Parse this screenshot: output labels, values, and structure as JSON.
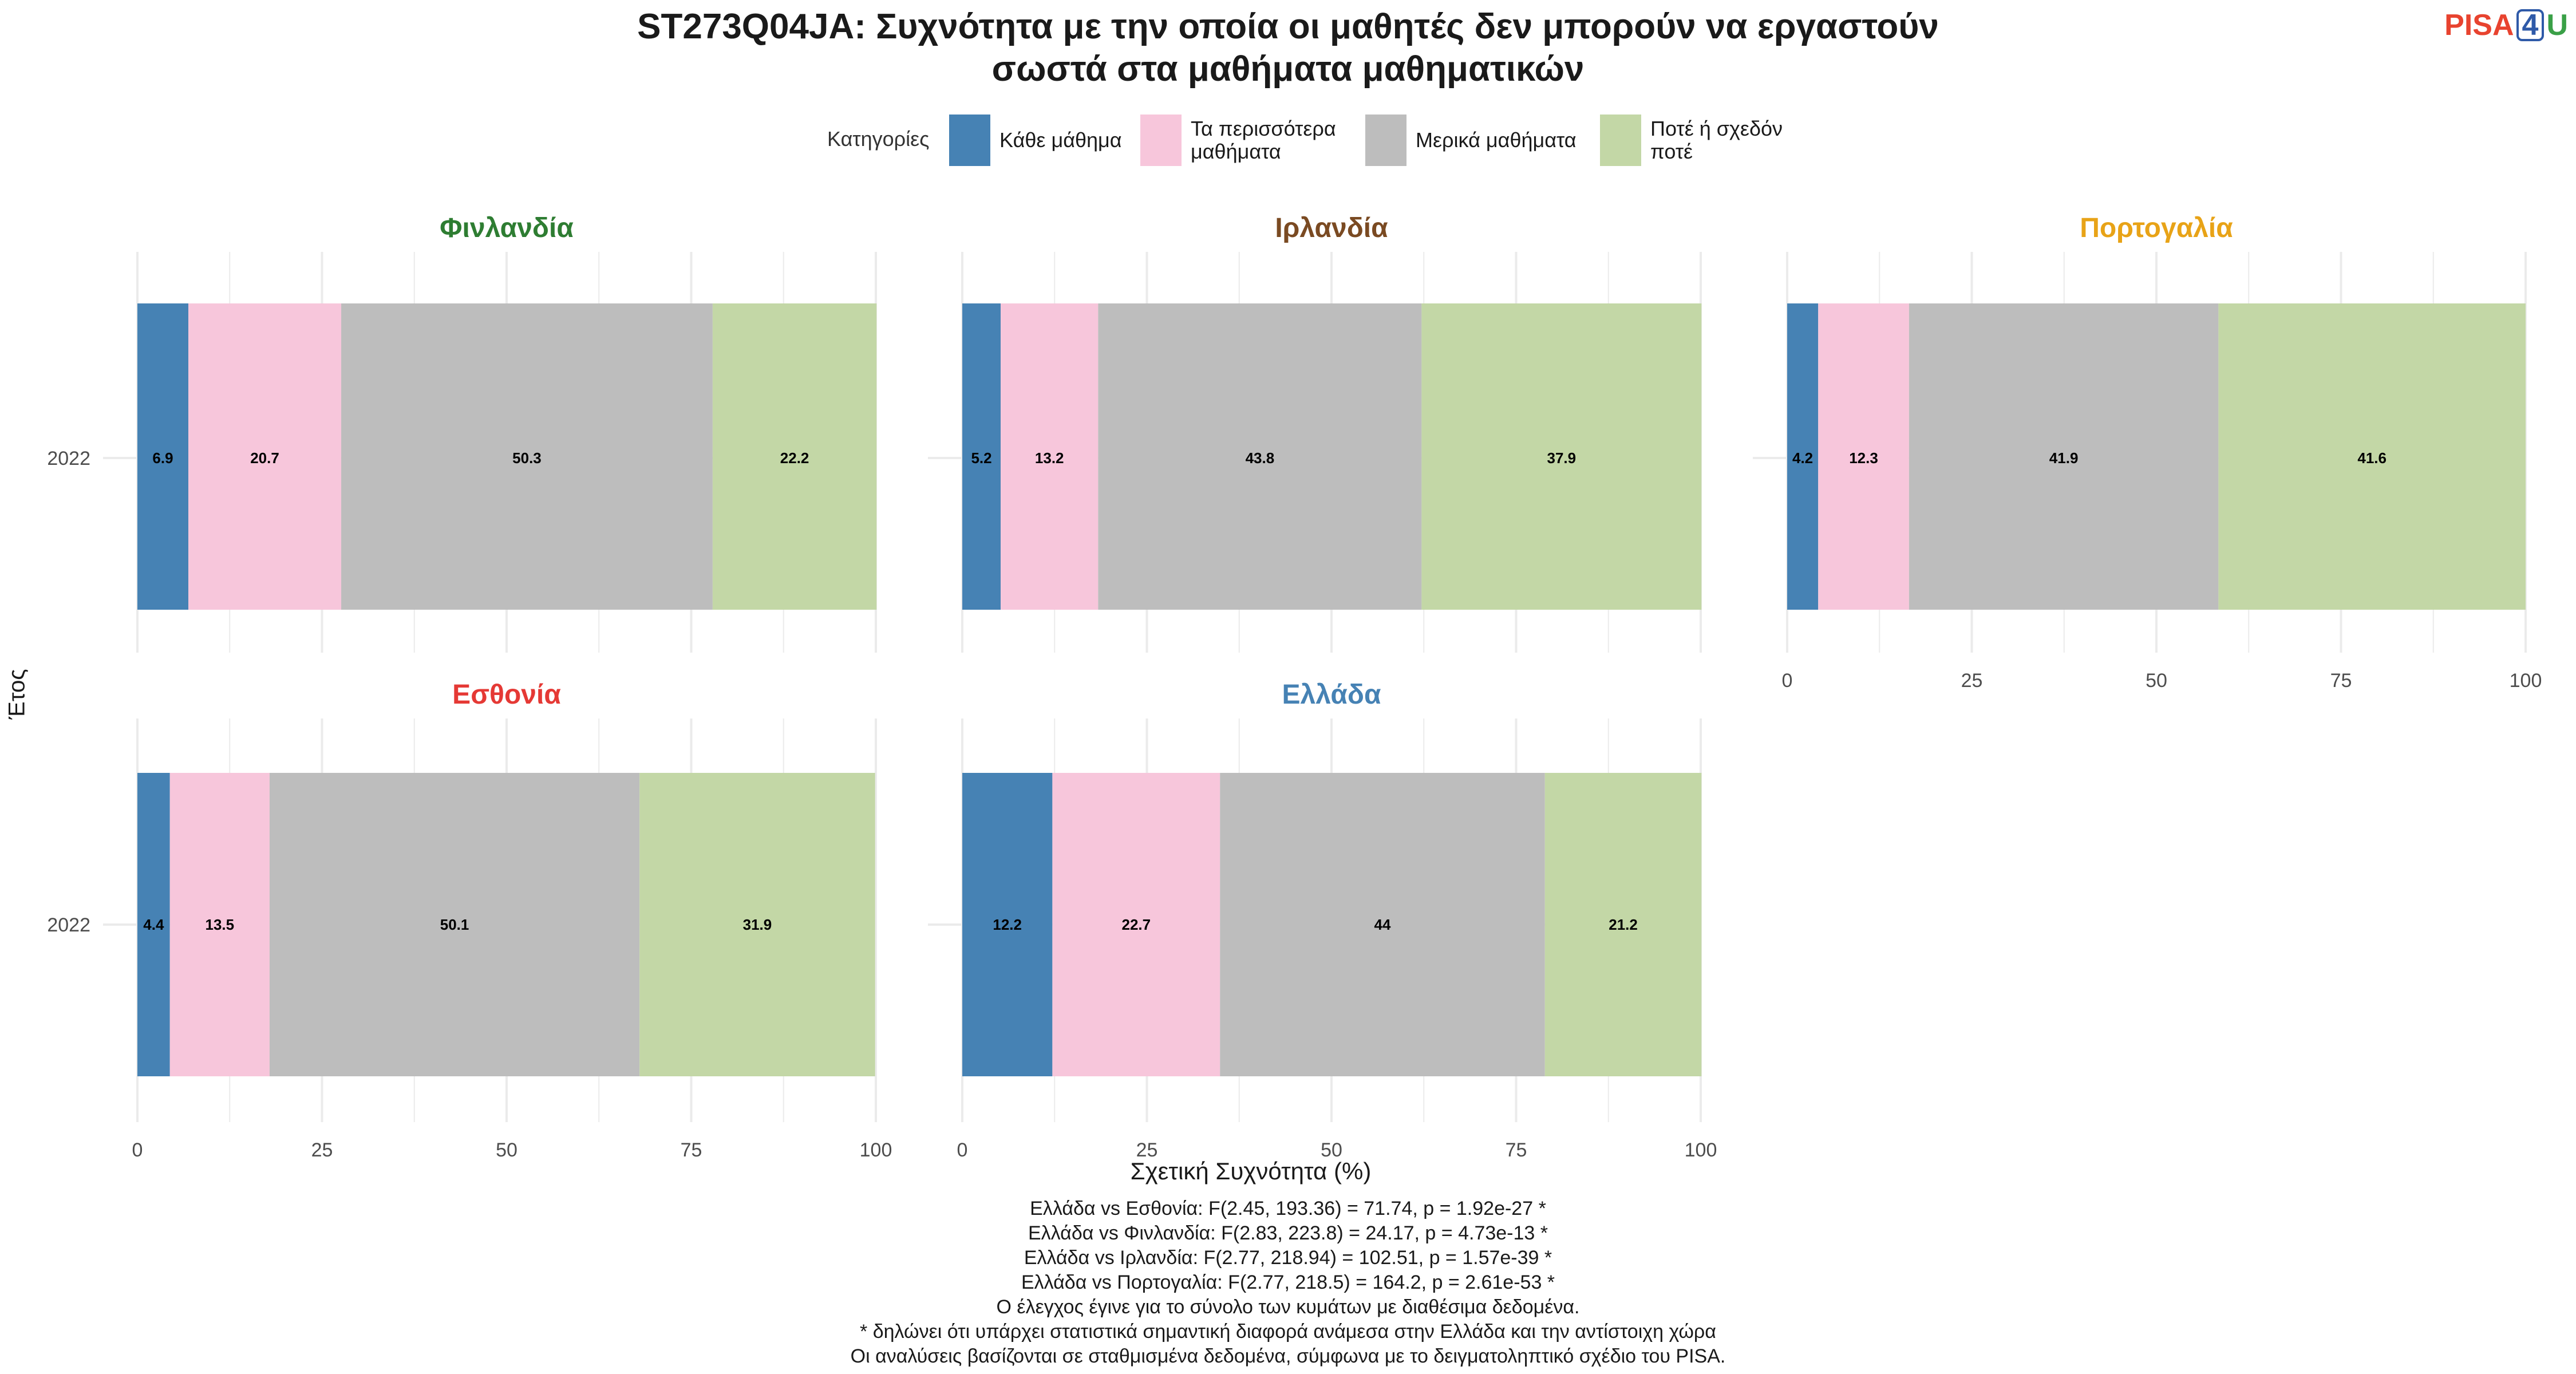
{
  "title_line1": "ST273Q04JA: Συχνότητα με την οποία οι μαθητές δεν μπορούν να εργαστούν",
  "title_line2": "σωστά στα μαθήματα μαθηματικών",
  "logo": {
    "pisa": "PISA",
    "num": "4",
    "u": "U"
  },
  "legend": {
    "title": "Κατηγορίες",
    "items": [
      {
        "label": "Κάθε μάθημα",
        "color": "#4682b4"
      },
      {
        "label": "Τα περισσότερα μαθήματα",
        "color": "#f7c6db"
      },
      {
        "label": "Μερικά μαθήματα",
        "color": "#bdbdbd"
      },
      {
        "label": "Ποτέ ή σχεδόν ποτέ",
        "color": "#c3d7a6"
      }
    ]
  },
  "chart_data": {
    "type": "bar",
    "orientation": "horizontal-stacked",
    "xlabel": "Σχετική Συχνότητα (%)",
    "ylabel": "Έτος",
    "xlim": [
      0,
      100
    ],
    "x_ticks": [
      0,
      25,
      50,
      75,
      100
    ],
    "categories": [
      "Κάθε μάθημα",
      "Τα περισσότερα μαθήματα",
      "Μερικά μαθήματα",
      "Ποτέ ή σχεδόν ποτέ"
    ],
    "panels": [
      {
        "country": "Φινλανδία",
        "color": "#2e7d32",
        "year": "2022",
        "values": [
          6.9,
          20.7,
          50.3,
          22.2
        ]
      },
      {
        "country": "Ιρλανδία",
        "color": "#7a4a22",
        "year": "2022",
        "values": [
          5.2,
          13.2,
          43.8,
          37.9
        ]
      },
      {
        "country": "Πορτογαλία",
        "color": "#e8a317",
        "year": "2022",
        "values": [
          4.2,
          12.3,
          41.9,
          41.6
        ]
      },
      {
        "country": "Εσθονία",
        "color": "#e53935",
        "year": "2022",
        "values": [
          4.4,
          13.5,
          50.1,
          31.9
        ]
      },
      {
        "country": "Ελλάδα",
        "color": "#4682b4",
        "year": "2022",
        "values": [
          12.2,
          22.7,
          44,
          21.2
        ]
      }
    ],
    "grid": true
  },
  "notes": [
    "Ελλάδα vs Εσθονία: F(2.45, 193.36) = 71.74, p = 1.92e-27 *",
    "Ελλάδα vs Φινλανδία: F(2.83, 223.8) = 24.17, p = 4.73e-13 *",
    "Ελλάδα vs Ιρλανδία: F(2.77, 218.94) = 102.51, p = 1.57e-39 *",
    "Ελλάδα vs Πορτογαλία: F(2.77, 218.5) = 164.2, p = 2.61e-53 *",
    "Ο έλεγχος έγινε για το σύνολο των κυμάτων με διαθέσιμα δεδομένα.",
    "* δηλώνει ότι υπάρχει στατιστικά σημαντική διαφορά ανάμεσα στην Ελλάδα και την αντίστοιχη χώρα",
    "Οι αναλύσεις βασίζονται σε σταθμισμένα δεδομένα, σύμφωνα με το δειγματοληπτικό σχέδιο του PISA."
  ]
}
